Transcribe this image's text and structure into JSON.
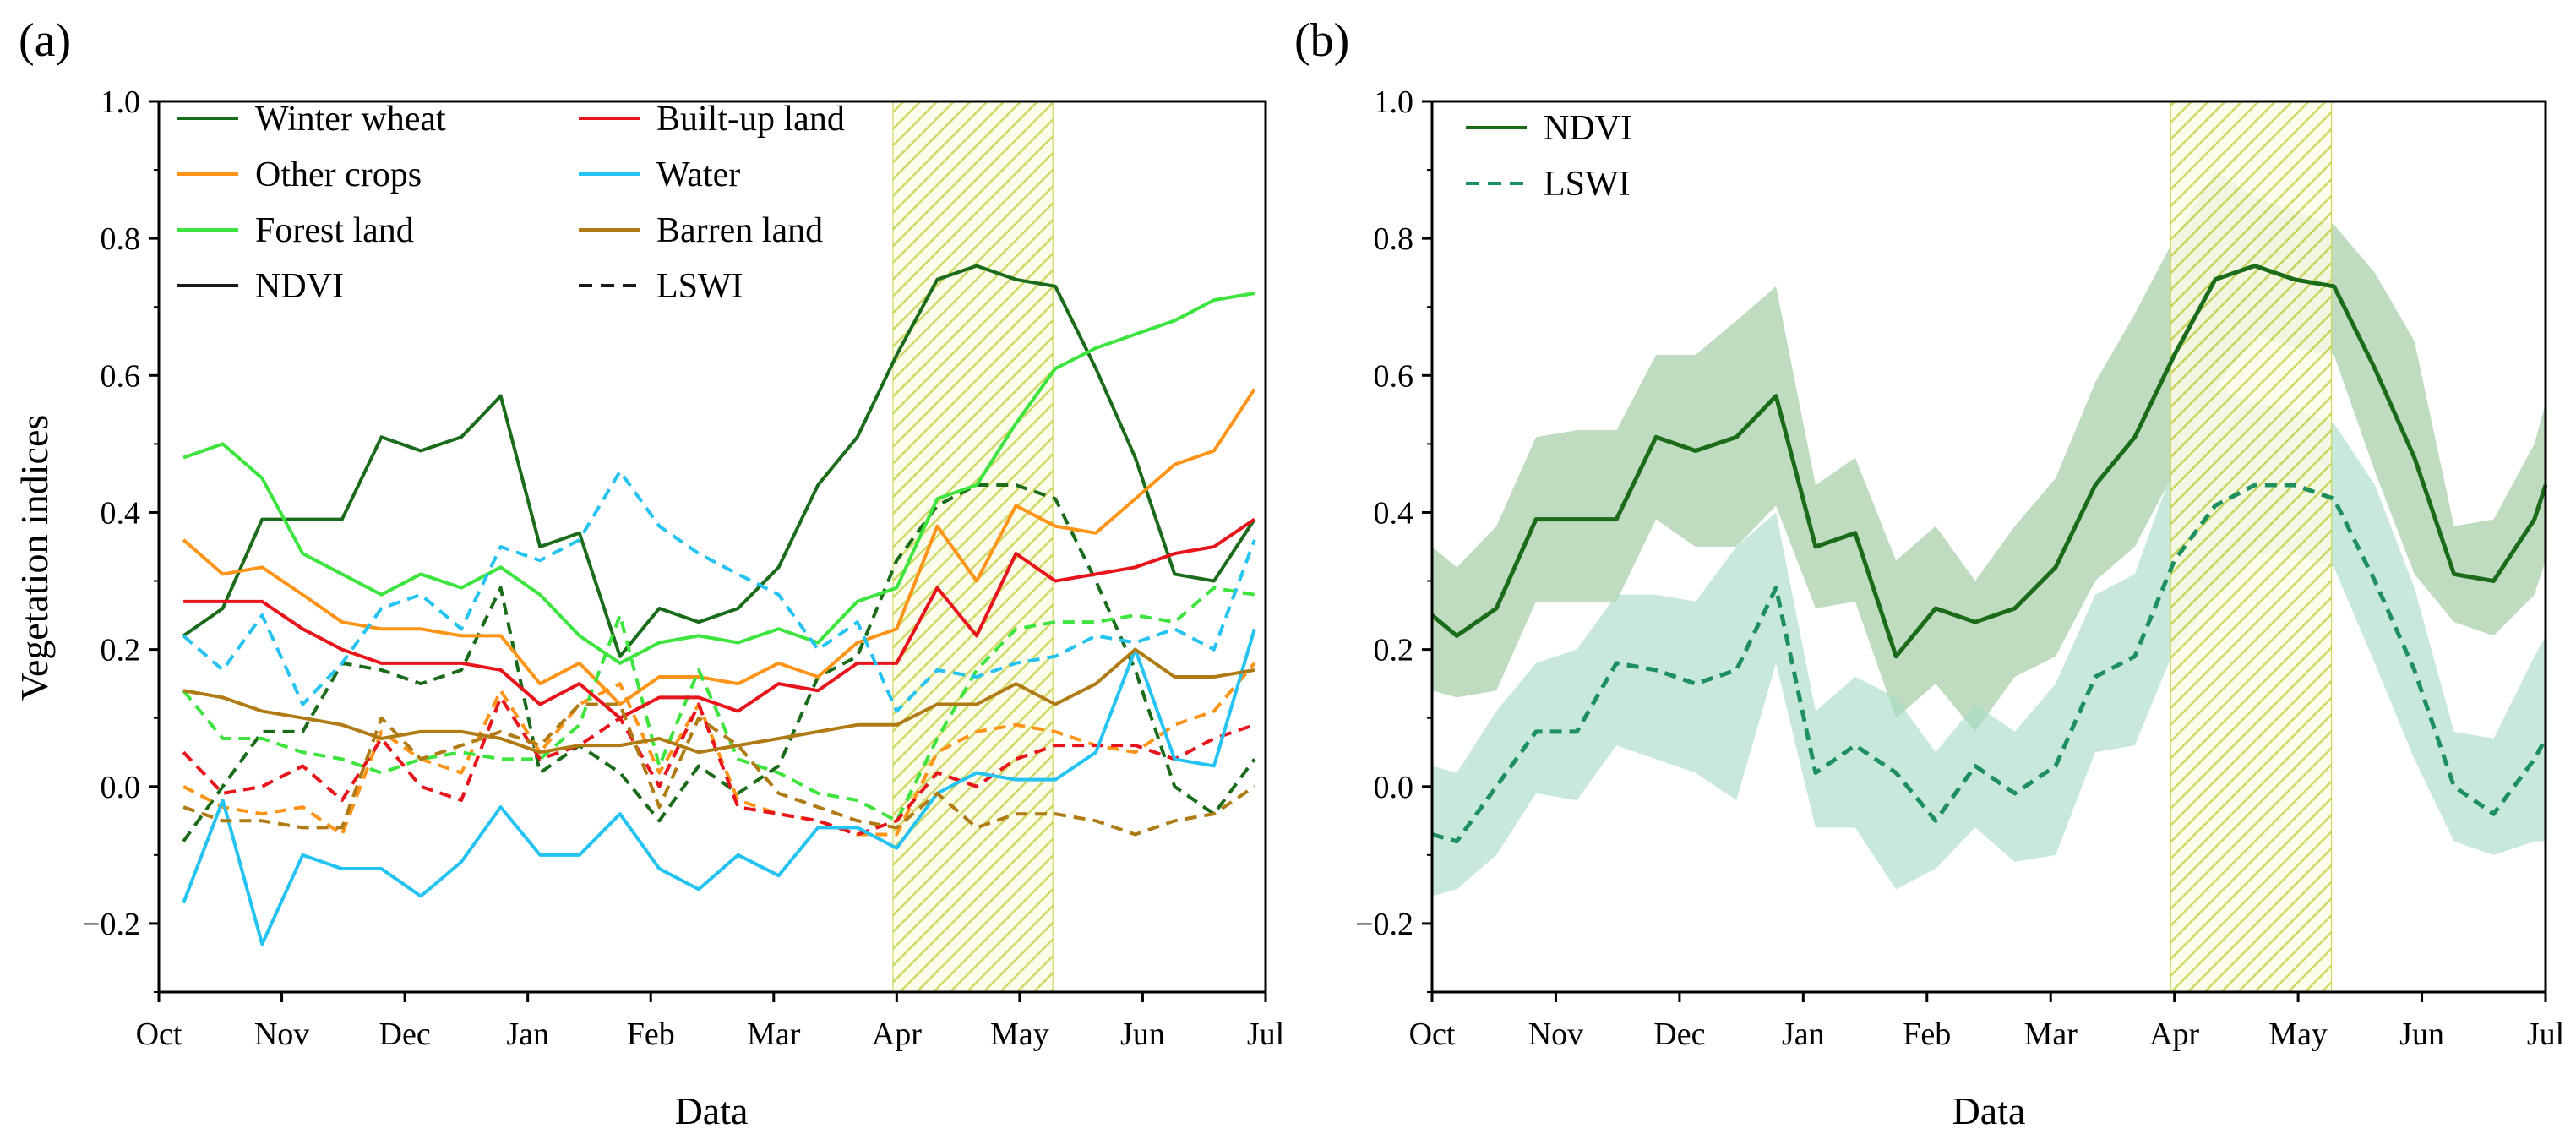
{
  "chart_data": [
    {
      "panel": "(a)",
      "type": "line",
      "xlabel": "Data",
      "ylabel": "Vegetation indices",
      "ylim": [
        -0.3,
        1.0
      ],
      "yticks": [
        "−0.2",
        "0.0",
        "0.2",
        "0.4",
        "0.6",
        "0.8",
        "1.0"
      ],
      "ytick_values": [
        -0.2,
        0.0,
        0.2,
        0.4,
        0.6,
        0.8,
        1.0
      ],
      "xlim": [
        0,
        9
      ],
      "xticks": [
        "Oct",
        "Nov",
        "Dec",
        "Jan",
        "Feb",
        "Mar",
        "Apr",
        "May",
        "Jun",
        "Jul"
      ],
      "highlight_region": [
        5.97,
        7.27
      ],
      "x": [
        0.2,
        0.52,
        0.84,
        1.17,
        1.49,
        1.81,
        2.13,
        2.46,
        2.78,
        3.1,
        3.42,
        3.75,
        4.07,
        4.39,
        4.71,
        5.04,
        5.36,
        5.68,
        6.0,
        6.33,
        6.65,
        6.97,
        7.29,
        7.62,
        7.94,
        8.26,
        8.58,
        8.91
      ],
      "legend_location": "top-left",
      "legend": [
        {
          "label": "Winter wheat",
          "color": "#1a6b1a",
          "dash": "solid"
        },
        {
          "label": "Built-up land",
          "color": "#e8141c",
          "dash": "solid"
        },
        {
          "label": "Other crops",
          "color": "#ff9419",
          "dash": "solid"
        },
        {
          "label": "Water",
          "color": "#24c3f2",
          "dash": "solid"
        },
        {
          "label": "Forest land",
          "color": "#3ee43e",
          "dash": "solid"
        },
        {
          "label": "Barren land",
          "color": "#b07a14",
          "dash": "solid"
        },
        {
          "label": "NDVI",
          "color": "#1a1a1a",
          "dash": "solid"
        },
        {
          "label": "LSWI",
          "color": "#1a1a1a",
          "dash": "dashed"
        }
      ],
      "series": [
        {
          "name": "Winter wheat NDVI",
          "color": "#1a6b1a",
          "dash": "solid",
          "values": [
            0.22,
            0.26,
            0.39,
            0.39,
            0.39,
            0.51,
            0.49,
            0.51,
            0.57,
            0.35,
            0.37,
            0.19,
            0.26,
            0.24,
            0.26,
            0.32,
            0.44,
            0.51,
            0.63,
            0.74,
            0.76,
            0.74,
            0.73,
            0.61,
            0.48,
            0.31,
            0.3,
            0.39
          ]
        },
        {
          "name": "Winter wheat LSWI",
          "color": "#1a6b1a",
          "dash": "dashed",
          "values": [
            -0.08,
            0.0,
            0.08,
            0.08,
            0.18,
            0.17,
            0.15,
            0.17,
            0.29,
            0.02,
            0.06,
            0.02,
            -0.05,
            0.03,
            -0.01,
            0.03,
            0.16,
            0.19,
            0.33,
            0.41,
            0.44,
            0.44,
            0.42,
            0.3,
            0.17,
            0.0,
            -0.04,
            0.04
          ]
        },
        {
          "name": "Other crops NDVI",
          "color": "#ff9419",
          "dash": "solid",
          "values": [
            0.36,
            0.31,
            0.32,
            0.28,
            0.24,
            0.23,
            0.23,
            0.22,
            0.22,
            0.15,
            0.18,
            0.12,
            0.16,
            0.16,
            0.15,
            0.18,
            0.16,
            0.21,
            0.23,
            0.38,
            0.3,
            0.41,
            0.38,
            0.37,
            0.42,
            0.47,
            0.49,
            0.58
          ]
        },
        {
          "name": "Other crops LSWI",
          "color": "#ff9419",
          "dash": "dashed",
          "values": [
            0.0,
            -0.03,
            -0.04,
            -0.03,
            -0.07,
            0.08,
            0.04,
            0.02,
            0.14,
            0.05,
            0.12,
            0.15,
            0.02,
            0.12,
            -0.02,
            -0.04,
            -0.05,
            -0.07,
            -0.07,
            0.05,
            0.08,
            0.09,
            0.08,
            0.06,
            0.05,
            0.09,
            0.11,
            0.18
          ]
        },
        {
          "name": "Forest land NDVI",
          "color": "#3ee43e",
          "dash": "solid",
          "values": [
            0.48,
            0.5,
            0.45,
            0.34,
            0.31,
            0.28,
            0.31,
            0.29,
            0.32,
            0.28,
            0.22,
            0.18,
            0.21,
            0.22,
            0.21,
            0.23,
            0.21,
            0.27,
            0.29,
            0.42,
            0.44,
            0.53,
            0.61,
            0.64,
            0.66,
            0.68,
            0.71,
            0.72
          ]
        },
        {
          "name": "Forest land LSWI",
          "color": "#3ee43e",
          "dash": "dashed",
          "values": [
            0.14,
            0.07,
            0.07,
            0.05,
            0.04,
            0.02,
            0.04,
            0.05,
            0.04,
            0.04,
            0.09,
            0.25,
            0.03,
            0.17,
            0.04,
            0.02,
            -0.01,
            -0.02,
            -0.05,
            0.07,
            0.17,
            0.23,
            0.24,
            0.24,
            0.25,
            0.24,
            0.29,
            0.28
          ]
        },
        {
          "name": "Built-up land NDVI",
          "color": "#e8141c",
          "dash": "solid",
          "values": [
            0.27,
            0.27,
            0.27,
            0.23,
            0.2,
            0.18,
            0.18,
            0.18,
            0.17,
            0.12,
            0.15,
            0.1,
            0.13,
            0.13,
            0.11,
            0.15,
            0.14,
            0.18,
            0.18,
            0.29,
            0.22,
            0.34,
            0.3,
            0.31,
            0.32,
            0.34,
            0.35,
            0.39
          ]
        },
        {
          "name": "Built-up land LSWI",
          "color": "#e8141c",
          "dash": "dashed",
          "values": [
            0.05,
            -0.01,
            0.0,
            0.03,
            -0.02,
            0.07,
            0.0,
            -0.02,
            0.13,
            0.04,
            0.06,
            0.1,
            0.0,
            0.12,
            -0.03,
            -0.04,
            -0.05,
            -0.07,
            -0.05,
            0.02,
            0.0,
            0.04,
            0.06,
            0.06,
            0.06,
            0.04,
            0.07,
            0.09
          ]
        },
        {
          "name": "Water NDVI",
          "color": "#24c3f2",
          "dash": "solid",
          "values": [
            -0.17,
            -0.02,
            -0.23,
            -0.1,
            -0.12,
            -0.12,
            -0.16,
            -0.11,
            -0.03,
            -0.1,
            -0.1,
            -0.04,
            -0.12,
            -0.15,
            -0.1,
            -0.13,
            -0.06,
            -0.06,
            -0.09,
            -0.01,
            0.02,
            0.01,
            0.01,
            0.05,
            0.2,
            0.04,
            0.03,
            0.23
          ]
        },
        {
          "name": "Water LSWI",
          "color": "#24c3f2",
          "dash": "dashed",
          "values": [
            0.22,
            0.17,
            0.25,
            0.12,
            0.18,
            0.26,
            0.28,
            0.23,
            0.35,
            0.33,
            0.36,
            0.46,
            0.38,
            0.34,
            0.31,
            0.28,
            0.2,
            0.24,
            0.11,
            0.17,
            0.16,
            0.18,
            0.19,
            0.22,
            0.21,
            0.23,
            0.2,
            0.36
          ]
        },
        {
          "name": "Barren land NDVI",
          "color": "#b07a14",
          "dash": "solid",
          "values": [
            0.14,
            0.13,
            0.11,
            0.1,
            0.09,
            0.07,
            0.08,
            0.08,
            0.07,
            0.05,
            0.06,
            0.06,
            0.07,
            0.05,
            0.06,
            0.07,
            0.08,
            0.09,
            0.09,
            0.12,
            0.12,
            0.15,
            0.12,
            0.15,
            0.2,
            0.16,
            0.16,
            0.17
          ]
        },
        {
          "name": "Barren land LSWI",
          "color": "#b07a14",
          "dash": "dashed",
          "values": [
            -0.03,
            -0.05,
            -0.05,
            -0.06,
            -0.06,
            0.1,
            0.04,
            0.06,
            0.08,
            0.06,
            0.12,
            0.12,
            -0.03,
            0.1,
            0.06,
            -0.01,
            -0.03,
            -0.05,
            -0.06,
            -0.01,
            -0.06,
            -0.04,
            -0.04,
            -0.05,
            -0.07,
            -0.05,
            -0.04,
            0.0
          ]
        }
      ]
    },
    {
      "panel": "(b)",
      "type": "line",
      "xlabel": "Data",
      "ylabel": "",
      "ylim": [
        -0.3,
        1.0
      ],
      "yticks": [
        "−0.2",
        "0.0",
        "0.2",
        "0.4",
        "0.6",
        "0.8",
        "1.0"
      ],
      "ytick_values": [
        -0.2,
        0.0,
        0.2,
        0.4,
        0.6,
        0.8,
        1.0
      ],
      "xlim": [
        0,
        9
      ],
      "xticks": [
        "Oct",
        "Nov",
        "Dec",
        "Jan",
        "Feb",
        "Mar",
        "Apr",
        "May",
        "Jun",
        "Jul"
      ],
      "highlight_region": [
        5.97,
        7.27
      ],
      "x": [
        0,
        0.2,
        0.52,
        0.84,
        1.17,
        1.49,
        1.81,
        2.13,
        2.46,
        2.78,
        3.1,
        3.42,
        3.75,
        4.07,
        4.39,
        4.71,
        5.04,
        5.36,
        5.68,
        6.0,
        6.33,
        6.65,
        6.97,
        7.29,
        7.62,
        7.94,
        8.26,
        8.58,
        8.91,
        9.0
      ],
      "legend_location": "top-left",
      "legend": [
        {
          "label": "NDVI",
          "color": "#1a6b1a",
          "dash": "solid"
        },
        {
          "label": "LSWI",
          "color": "#1e8f5e",
          "dash": "dashed"
        }
      ],
      "series": [
        {
          "name": "NDVI",
          "color": "#1a6b1a",
          "dash": "solid",
          "band_color": "#9ec99e",
          "values": [
            0.25,
            0.22,
            0.26,
            0.39,
            0.39,
            0.39,
            0.51,
            0.49,
            0.51,
            0.57,
            0.35,
            0.37,
            0.19,
            0.26,
            0.24,
            0.26,
            0.32,
            0.44,
            0.51,
            0.63,
            0.74,
            0.76,
            0.74,
            0.73,
            0.61,
            0.48,
            0.31,
            0.3,
            0.39,
            0.44
          ],
          "upper": [
            0.35,
            0.32,
            0.38,
            0.51,
            0.52,
            0.52,
            0.63,
            0.63,
            0.68,
            0.73,
            0.44,
            0.48,
            0.33,
            0.38,
            0.3,
            0.38,
            0.45,
            0.59,
            0.69,
            0.8,
            0.9,
            0.86,
            0.84,
            0.82,
            0.75,
            0.65,
            0.38,
            0.39,
            0.5,
            0.56
          ],
          "lower": [
            0.14,
            0.13,
            0.14,
            0.27,
            0.27,
            0.27,
            0.39,
            0.35,
            0.35,
            0.41,
            0.26,
            0.27,
            0.1,
            0.15,
            0.08,
            0.16,
            0.19,
            0.3,
            0.35,
            0.46,
            0.58,
            0.66,
            0.64,
            0.63,
            0.46,
            0.31,
            0.24,
            0.22,
            0.28,
            0.33
          ]
        },
        {
          "name": "LSWI",
          "color": "#1e8f5e",
          "dash": "dashed",
          "band_color": "#a9dcc6",
          "values": [
            -0.07,
            -0.08,
            0.0,
            0.08,
            0.08,
            0.18,
            0.17,
            0.15,
            0.17,
            0.29,
            0.02,
            0.06,
            0.02,
            -0.05,
            0.03,
            -0.01,
            0.03,
            0.16,
            0.19,
            0.33,
            0.41,
            0.44,
            0.44,
            0.42,
            0.3,
            0.17,
            0.0,
            -0.04,
            0.04,
            0.07
          ],
          "upper": [
            0.03,
            0.02,
            0.11,
            0.18,
            0.2,
            0.28,
            0.28,
            0.27,
            0.35,
            0.4,
            0.11,
            0.16,
            0.13,
            0.05,
            0.12,
            0.08,
            0.15,
            0.28,
            0.31,
            0.47,
            0.58,
            0.56,
            0.55,
            0.53,
            0.44,
            0.29,
            0.08,
            0.07,
            0.19,
            0.22
          ],
          "lower": [
            -0.16,
            -0.15,
            -0.1,
            -0.01,
            -0.02,
            0.06,
            0.04,
            0.02,
            -0.02,
            0.18,
            -0.06,
            -0.06,
            -0.15,
            -0.12,
            -0.06,
            -0.11,
            -0.1,
            0.05,
            0.06,
            0.2,
            0.28,
            0.34,
            0.34,
            0.32,
            0.18,
            0.04,
            -0.08,
            -0.1,
            -0.08,
            -0.08
          ]
        }
      ]
    }
  ]
}
